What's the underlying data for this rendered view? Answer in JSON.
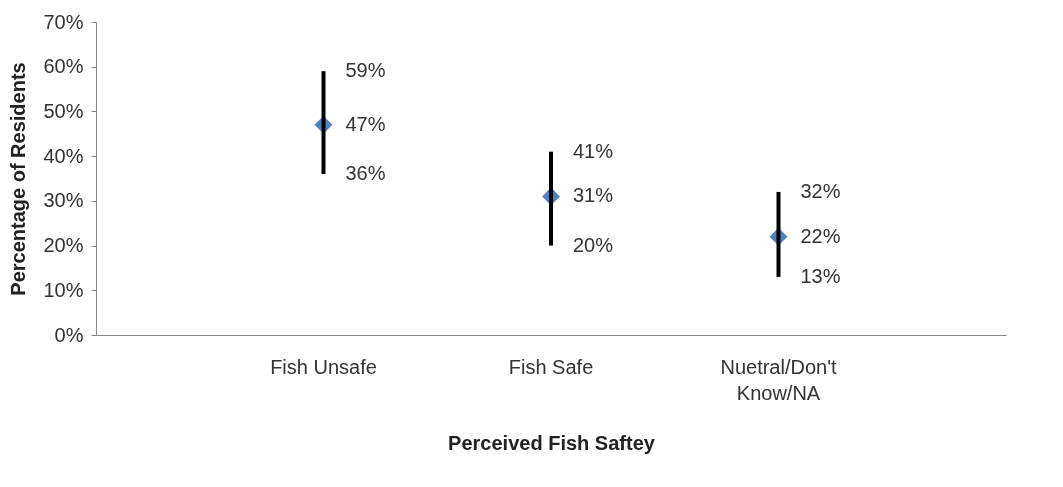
{
  "chart_data": {
    "type": "scatter",
    "xlabel": "Perceived Fish Saftey",
    "ylabel": "Percentage of Residents",
    "categories": [
      "Fish Unsafe",
      "Fish Safe",
      "Nuetral/Don't Know/NA"
    ],
    "values": [
      47,
      31,
      22
    ],
    "errors": [
      [
        36,
        59
      ],
      [
        20,
        41
      ],
      [
        13,
        32
      ]
    ],
    "value_labels": [
      "47%",
      "31%",
      "22%"
    ],
    "color": "#4f81bd",
    "marker": "diamond",
    "ylim": [
      0,
      70
    ],
    "yticks": [
      {
        "value": 0,
        "label": "0%"
      },
      {
        "value": 10,
        "label": "10%"
      },
      {
        "value": 20,
        "label": "20%"
      },
      {
        "value": 30,
        "label": "30%"
      },
      {
        "value": 40,
        "label": "40%"
      },
      {
        "value": 50,
        "label": "50%"
      },
      {
        "value": 60,
        "label": "60%"
      },
      {
        "value": 70,
        "label": "70%"
      }
    ],
    "annotations": [
      {
        "text": "59%",
        "x": "Fish Unsafe",
        "y": 59
      },
      {
        "text": "36%",
        "x": "Fish Unsafe",
        "y": 36
      },
      {
        "text": "41%",
        "x": "Fish Safe",
        "y": 41
      },
      {
        "text": "20%",
        "x": "Fish Safe",
        "y": 20
      },
      {
        "text": "32%",
        "x": "Nuetral/Don't Know/NA",
        "y": 32
      },
      {
        "text": "13%",
        "x": "Nuetral/Don't Know/NA",
        "y": 13
      }
    ]
  }
}
